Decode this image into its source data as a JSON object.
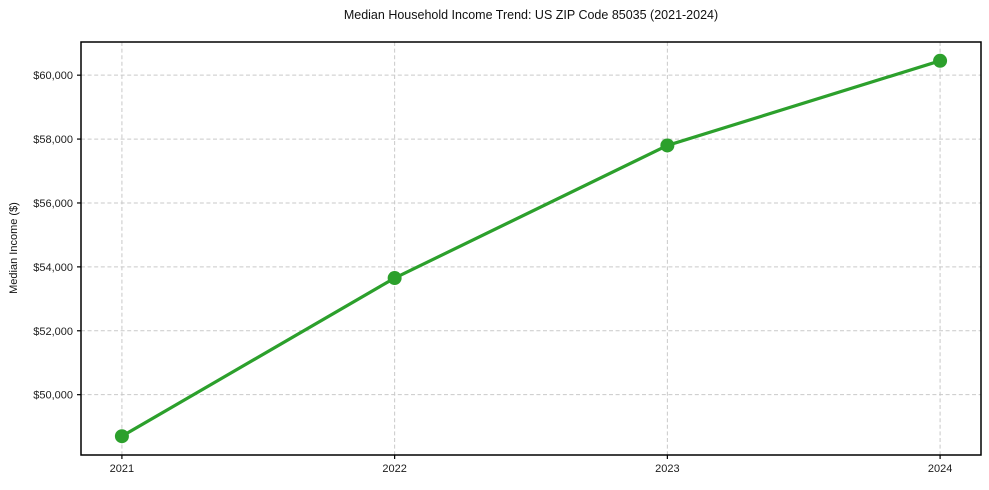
{
  "chart_data": {
    "type": "line",
    "title": "Median Household Income Trend: US ZIP Code 85035 (2021-2024)",
    "xlabel": "",
    "ylabel": "Median Income ($)",
    "x": [
      2021,
      2022,
      2023,
      2024
    ],
    "x_tick_labels": [
      "2021",
      "2022",
      "2023",
      "2024"
    ],
    "series": [
      {
        "name": "Median Household Income",
        "values": [
          48700,
          53650,
          57800,
          60450
        ],
        "color": "#2ca02c"
      }
    ],
    "y_ticks": [
      50000,
      52000,
      54000,
      56000,
      58000,
      60000
    ],
    "y_tick_labels": [
      "$50,000",
      "$52,000",
      "$54,000",
      "$56,000",
      "$58,000",
      "$60,000"
    ],
    "xlim": [
      2020.85,
      2024.15
    ],
    "ylim": [
      48112,
      61038
    ],
    "grid": true,
    "grid_style": "dashed",
    "legend": "none",
    "colors": {
      "line": "#2ca02c",
      "marker": "#2ca02c",
      "grid": "#c9c9c9",
      "axis": "#000000",
      "background": "#ffffff",
      "text": "#1c1c1c"
    },
    "marker_radius": 7,
    "line_width": 3.2
  }
}
